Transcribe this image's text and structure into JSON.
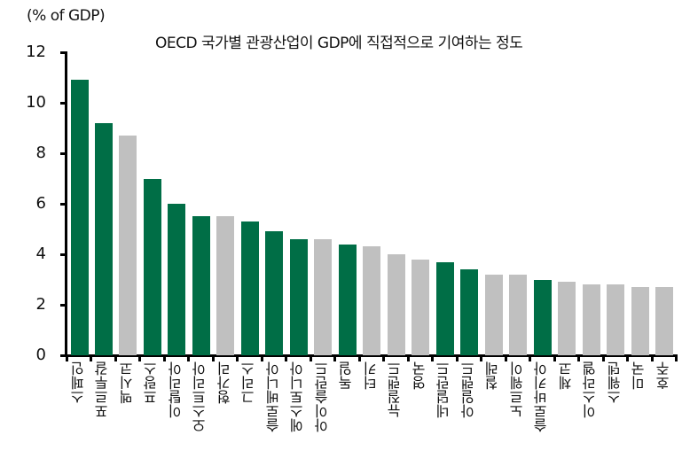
{
  "header": {
    "unit_label": "(% of GDP)",
    "title": "OECD 국가별 관광산업이 GDP에 직접적으로 기여하는 정도"
  },
  "colors": {
    "highlight": "#006E46",
    "other": "#C0C0C0"
  },
  "chart_data": {
    "type": "bar",
    "title": "OECD 국가별 관광산업이 GDP에 직접적으로 기여하는 정도",
    "xlabel": "",
    "ylabel": "(% of GDP)",
    "ylim": [
      0,
      12
    ],
    "yticks": [
      0,
      2,
      4,
      6,
      8,
      10,
      12
    ],
    "grid": false,
    "legend": null,
    "categories": [
      "스페인",
      "포르투갈",
      "멕시코",
      "프랑스",
      "이탈리아",
      "오스트리아",
      "헝가리",
      "그리스",
      "슬로베니아",
      "에스토니아",
      "아이슬란드",
      "독일",
      "터키",
      "뉴질랜드",
      "영국",
      "네덜란드",
      "아일랜드",
      "칠레",
      "노르웨이",
      "슬로바키아",
      "체코",
      "이스라엘",
      "스웨덴",
      "미국",
      "호주"
    ],
    "values": [
      10.9,
      9.2,
      8.7,
      7.0,
      6.0,
      5.5,
      5.5,
      5.3,
      4.9,
      4.6,
      4.6,
      4.4,
      4.3,
      4.0,
      3.8,
      3.7,
      3.4,
      3.2,
      3.2,
      3.0,
      2.9,
      2.8,
      2.8,
      2.7,
      2.7
    ],
    "highlighted": [
      true,
      true,
      false,
      true,
      true,
      true,
      false,
      true,
      true,
      true,
      false,
      true,
      false,
      false,
      false,
      true,
      true,
      false,
      false,
      true,
      false,
      false,
      false,
      false,
      false
    ]
  }
}
